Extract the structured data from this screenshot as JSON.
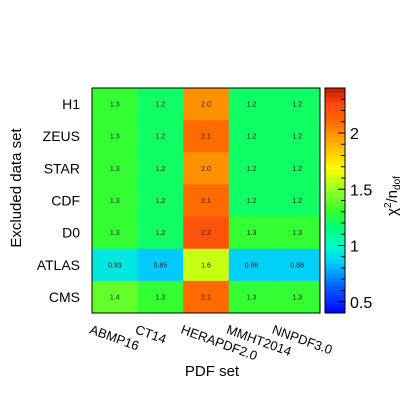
{
  "chart_data": {
    "type": "heatmap",
    "title": "",
    "xlabel": "PDF set",
    "ylabel": "Excluded data set",
    "zlabel_main": "χ",
    "zlabel_sup": "2",
    "zlabel_mid": "/n",
    "zlabel_sub": "dof",
    "x_categories": [
      "ABMP16",
      "CT14",
      "HERAPDF2.0",
      "MMHT2014",
      "NNPDF3.0"
    ],
    "y_categories": [
      "H1",
      "ZEUS",
      "STAR",
      "CDF",
      "D0",
      "ATLAS",
      "CMS"
    ],
    "values": [
      [
        1.3,
        1.2,
        2.0,
        1.2,
        1.2
      ],
      [
        1.3,
        1.2,
        2.1,
        1.2,
        1.2
      ],
      [
        1.3,
        1.2,
        2.0,
        1.2,
        1.2
      ],
      [
        1.3,
        1.2,
        2.1,
        1.2,
        1.2
      ],
      [
        1.3,
        1.2,
        2.2,
        1.3,
        1.3
      ],
      [
        0.93,
        0.85,
        1.6,
        0.86,
        0.86
      ],
      [
        1.4,
        1.3,
        2.1,
        1.3,
        1.3
      ]
    ],
    "cell_labels": [
      [
        "1.3",
        "1.2",
        "2.0",
        "1.2",
        "1.2"
      ],
      [
        "1.3",
        "1.2",
        "2.1",
        "1.2",
        "1.2"
      ],
      [
        "1.3",
        "1.2",
        "2.0",
        "1.2",
        "1.2"
      ],
      [
        "1.3",
        "1.2",
        "2.1",
        "1.2",
        "1.2"
      ],
      [
        "1.3",
        "1.2",
        "2.2",
        "1.3",
        "1.3"
      ],
      [
        "0.93",
        "0.85",
        "1.6",
        "0.86",
        "0.86"
      ],
      [
        "1.4",
        "1.3",
        "2.1",
        "1.3",
        "1.3"
      ]
    ],
    "zlim": [
      0.4,
      2.4
    ],
    "z_ticks": [
      "0.5",
      "1",
      "1.5",
      "2"
    ],
    "colors": {
      "lime": "#99ff33",
      "orange_red": "#ff5511",
      "dark_red": "#cc2200",
      "mint": "#00ff99",
      "amber": "#ffaa00",
      "yellow": "#ffff00",
      "green": "#33ff33"
    }
  }
}
